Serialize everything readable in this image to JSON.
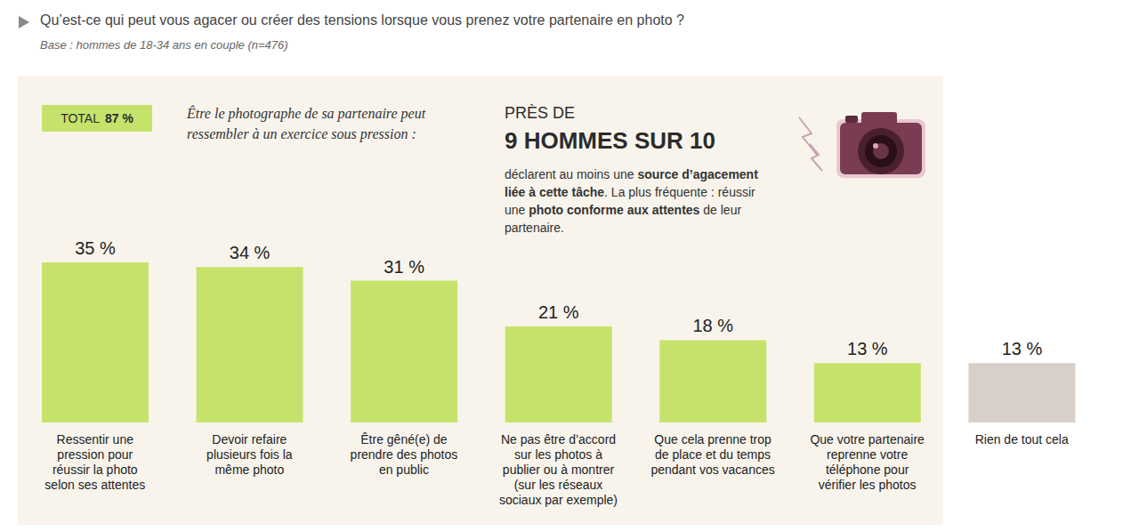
{
  "chart_data": {
    "type": "bar",
    "title": "Qu’est-ce qui peut vous agacer ou créer des tensions lorsque vous prenez votre partenaire en photo ?",
    "subtitle": "Base : hommes de 18-34 ans en couple (n=476)",
    "categories": [
      "Ressentir une pression pour réussir la photo selon ses attentes",
      "Devoir refaire plusieurs fois la même photo",
      "Être gêné(e) de prendre des photos en public",
      "Ne pas être d’accord sur les photos à publier ou à montrer (sur les réseaux sociaux par exemple)",
      "Que cela prenne trop de place et du temps pendant vos vacances",
      "Que votre partenaire reprenne votre téléphone pour vérifier les photos",
      "Rien de tout cela"
    ],
    "values": [
      35,
      34,
      31,
      21,
      18,
      13,
      13
    ],
    "value_labels": [
      "35 %",
      "34 %",
      "31 %",
      "21 %",
      "18 %",
      "13 %",
      "13 %"
    ],
    "colors": [
      "#c5e36b",
      "#c5e36b",
      "#c5e36b",
      "#c5e36b",
      "#c5e36b",
      "#c5e36b",
      "#d8d0c8"
    ],
    "ylim": [
      0,
      35
    ],
    "data_labels": true,
    "tick_labels": "x",
    "annotations": {
      "badge": [
        "TOTAL",
        "87 %"
      ],
      "intro": "Être le photographe de sa partenaire peut ressembler à un exercice sous pression :",
      "kicker": "PRÈS DE",
      "headline": "9 HOMMES SUR 10",
      "body": [
        "déclarent au moins une ",
        "source d’agacement liée à cette tâche",
        ". La plus fréquente : réussir une ",
        "photo conforme aux attentes",
        " de leur partenaire."
      ]
    }
  }
}
